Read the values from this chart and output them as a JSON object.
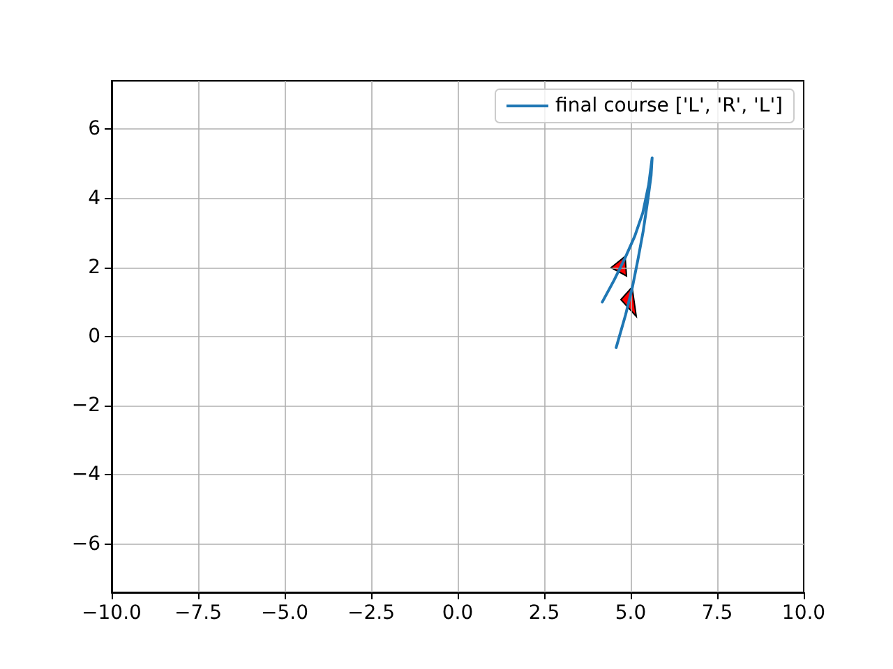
{
  "chart_data": {
    "type": "line",
    "series": [
      {
        "name": "final course ['L', 'R', 'L']",
        "color": "#1f77b4",
        "x": [
          4.18,
          4.52,
          4.85,
          5.12,
          5.35,
          5.52,
          5.62,
          5.59,
          5.5,
          5.36,
          5.21,
          5.05,
          4.85,
          4.58
        ],
        "values": [
          1.0,
          1.63,
          2.3,
          2.91,
          3.58,
          4.39,
          5.17,
          4.66,
          3.99,
          3.04,
          2.23,
          1.43,
          0.62,
          -0.32
        ]
      }
    ],
    "xlim": [
      -10,
      10
    ],
    "ylim": [
      -7.4,
      7.4
    ],
    "xticks": [
      {
        "value": -10,
        "label": "−10.0"
      },
      {
        "value": -7.5,
        "label": "−7.5"
      },
      {
        "value": -5,
        "label": "−5.0"
      },
      {
        "value": -2.5,
        "label": "−2.5"
      },
      {
        "value": 0,
        "label": "0.0"
      },
      2.5,
      {
        "value": 5,
        "label": "5.0"
      },
      7.5,
      {
        "value": 10,
        "label": "10.0"
      }
    ],
    "yticks": [
      {
        "value": -6,
        "label": "−6"
      },
      {
        "value": -4,
        "label": "−4"
      },
      {
        "value": -2,
        "label": "−2"
      },
      0,
      2,
      4,
      6
    ],
    "grid": true,
    "legend": "top right",
    "marker": "none",
    "line_style": "solid"
  }
}
